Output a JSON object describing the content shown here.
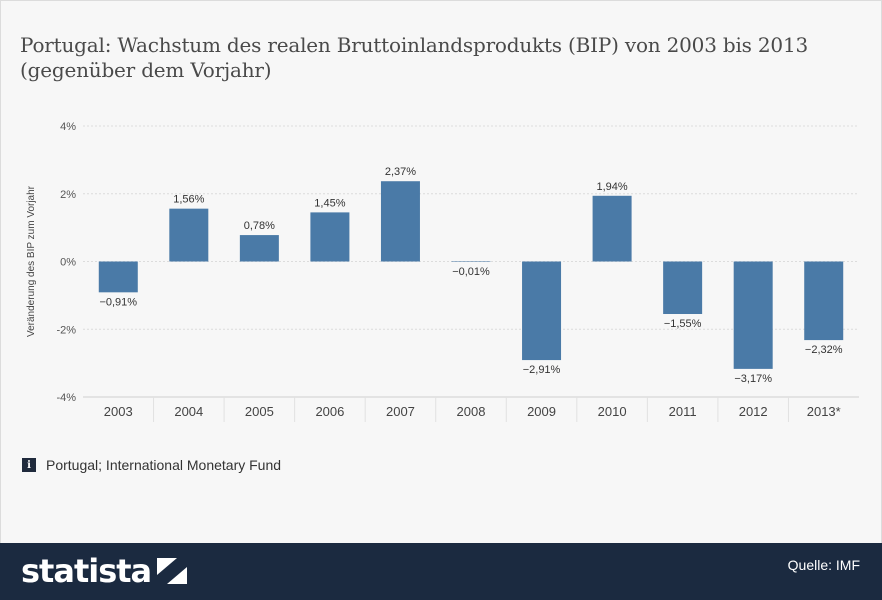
{
  "title": "Portugal: Wachstum des realen Bruttoinlandsprodukts (BIP) von 2003 bis 2013 (gegenüber dem Vorjahr)",
  "source_note": "Portugal; International Monetary Fund",
  "footer": {
    "brand": "statista",
    "quelle": "Quelle: IMF"
  },
  "colors": {
    "bar": "#4a7aa7",
    "grid": "#dcdcdc",
    "footer_bg": "#1b2a40"
  },
  "chart_data": {
    "type": "bar",
    "title": "Portugal: Wachstum des realen Bruttoinlandsprodukts (BIP) von 2003 bis 2013 (gegenüber dem Vorjahr)",
    "xlabel": "",
    "ylabel": "Veränderung des BIP zum Vorjahr",
    "ylim": [
      -4,
      4
    ],
    "yticks": [
      4,
      2,
      0,
      -2,
      -4
    ],
    "ytick_labels": [
      "4%",
      "2%",
      "0%",
      "-2%",
      "-4%"
    ],
    "grid": true,
    "categories": [
      "2003",
      "2004",
      "2005",
      "2006",
      "2007",
      "2008",
      "2009",
      "2010",
      "2011",
      "2012",
      "2013*"
    ],
    "values": [
      -0.91,
      1.56,
      0.78,
      1.45,
      2.37,
      -0.01,
      -2.91,
      1.94,
      -1.55,
      -3.17,
      -2.32
    ],
    "value_labels": [
      "−0,91%",
      "1,56%",
      "0,78%",
      "1,45%",
      "2,37%",
      "−0,01%",
      "−2,91%",
      "1,94%",
      "−1,55%",
      "−3,17%",
      "−2,32%"
    ]
  }
}
